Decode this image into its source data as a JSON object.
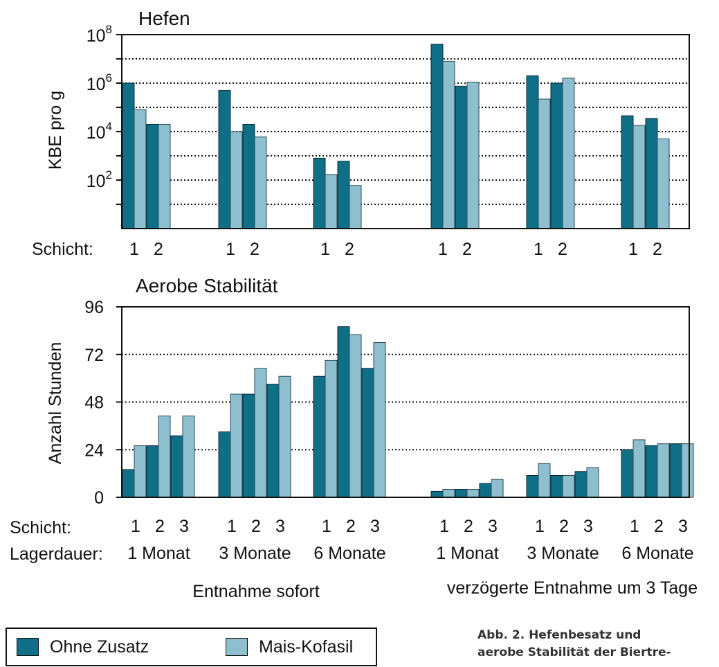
{
  "colors": {
    "ohne": "#0f6f86",
    "mais": "#8dbfcf",
    "axis": "#111111"
  },
  "legend": {
    "ohne_label": "Ohne Zusatz",
    "mais_label": "Mais-Kofasil"
  },
  "caption": {
    "line1": "Abb. 2. Hefenbesatz und",
    "line2": "aerobe Stabilität der Biertre-"
  },
  "bottom_labels": {
    "lager_label": "Lagerdauer:",
    "lager_values": [
      "1 Monat",
      "3 Monate",
      "6 Monate",
      "1 Monat",
      "3 Monate",
      "6 Monate"
    ],
    "entnahme_sofort": "Entnahme sofort",
    "entnahme_verzoegert": "verzögerte Entnahme um 3 Tage"
  },
  "chart_data": [
    {
      "type": "bar",
      "title": "Hefen",
      "ylabel": "KBE pro g",
      "yscale": "log",
      "ylim": [
        1,
        100000000
      ],
      "yticks": [
        {
          "value": 100,
          "base": "10",
          "exp": "2"
        },
        {
          "value": 10000,
          "base": "10",
          "exp": "4"
        },
        {
          "value": 1000000,
          "base": "10",
          "exp": "6"
        },
        {
          "value": 100000000,
          "base": "10",
          "exp": "8"
        }
      ],
      "grid": true,
      "row_label": "Schicht:",
      "groups": [
        {
          "schichten": [
            "1",
            "2"
          ],
          "ohne": [
            1000000,
            20000
          ],
          "mais": [
            80000,
            20000
          ]
        },
        {
          "schichten": [
            "1",
            "2"
          ],
          "ohne": [
            500000,
            20000
          ],
          "mais": [
            10000,
            6000
          ]
        },
        {
          "schichten": [
            "1",
            "2"
          ],
          "ohne": [
            800,
            600
          ],
          "mais": [
            170,
            60
          ]
        },
        {
          "schichten": [
            "1",
            "2"
          ],
          "ohne": [
            40000000,
            750000
          ],
          "mais": [
            8000000,
            1100000
          ]
        },
        {
          "schichten": [
            "1",
            "2"
          ],
          "ohne": [
            2000000,
            1000000
          ],
          "mais": [
            220000,
            1600000
          ]
        },
        {
          "schichten": [
            "1",
            "2"
          ],
          "ohne": [
            45000,
            35000
          ],
          "mais": [
            18000,
            5000
          ]
        }
      ],
      "series": [
        {
          "name": "Ohne Zusatz"
        },
        {
          "name": "Mais-Kofasil"
        }
      ]
    },
    {
      "type": "bar",
      "title": "Aerobe Stabilität",
      "ylabel": "Anzahl Stunden",
      "ylim": [
        0,
        96
      ],
      "yticks": [
        "0",
        "24",
        "48",
        "72",
        "96"
      ],
      "grid": true,
      "row_label": "Schicht:",
      "groups": [
        {
          "schichten": [
            "1",
            "2",
            "3"
          ],
          "ohne": [
            14,
            26,
            31
          ],
          "mais": [
            26,
            41,
            41
          ]
        },
        {
          "schichten": [
            "1",
            "2",
            "3"
          ],
          "ohne": [
            33,
            52,
            57
          ],
          "mais": [
            52,
            65,
            61
          ]
        },
        {
          "schichten": [
            "1",
            "2",
            "3"
          ],
          "ohne": [
            61,
            86,
            65
          ],
          "mais": [
            69,
            82,
            78
          ]
        },
        {
          "schichten": [
            "1",
            "2",
            "3"
          ],
          "ohne": [
            3,
            4,
            7
          ],
          "mais": [
            4,
            4,
            9
          ]
        },
        {
          "schichten": [
            "1",
            "2",
            "3"
          ],
          "ohne": [
            11,
            11,
            13
          ],
          "mais": [
            17,
            11,
            15
          ]
        },
        {
          "schichten": [
            "1",
            "2",
            "3"
          ],
          "ohne": [
            24,
            26,
            27
          ],
          "mais": [
            29,
            27,
            27
          ]
        }
      ],
      "series": [
        {
          "name": "Ohne Zusatz"
        },
        {
          "name": "Mais-Kofasil"
        }
      ]
    }
  ]
}
